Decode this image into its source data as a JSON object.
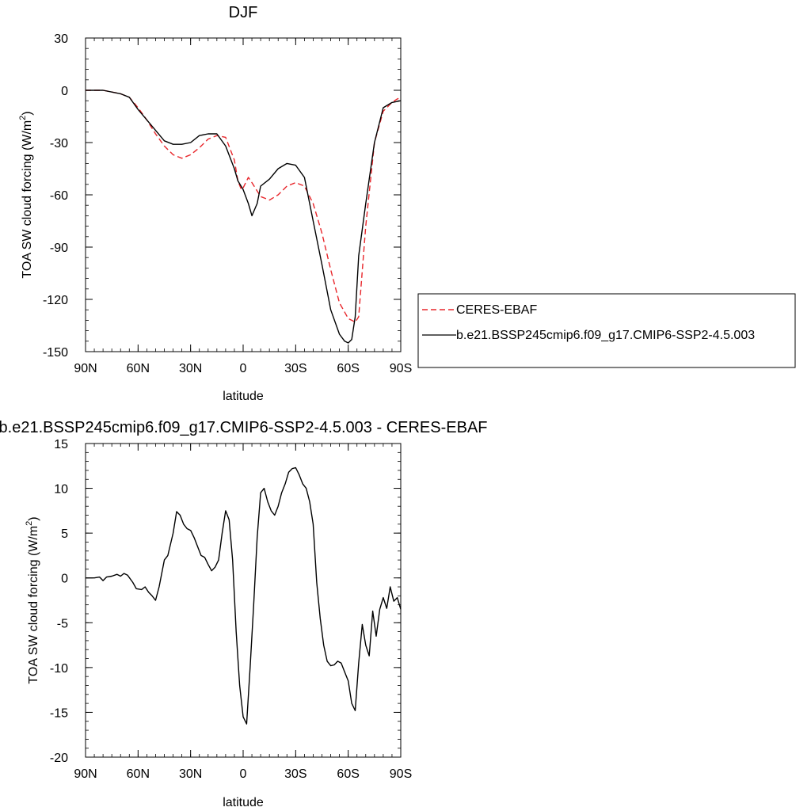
{
  "chart_data": [
    {
      "type": "line",
      "title": "DJF",
      "xlabel": "latitude",
      "ylabel": "TOA SW cloud forcing (W/m",
      "ylabel_sup": "2",
      "ylabel_close": ")",
      "xlim": [
        90,
        -90
      ],
      "ylim": [
        -150,
        30
      ],
      "xticks": [
        {
          "value": 90,
          "label": "90N"
        },
        {
          "value": 60,
          "label": "60N"
        },
        {
          "value": 30,
          "label": "30N"
        },
        {
          "value": 0,
          "label": "0"
        },
        {
          "value": -30,
          "label": "30S"
        },
        {
          "value": -60,
          "label": "60S"
        },
        {
          "value": -90,
          "label": "90S"
        }
      ],
      "yticks": [
        30,
        0,
        -30,
        -60,
        -90,
        -120,
        -150
      ],
      "legend": "right",
      "series": [
        {
          "name": "CERES-EBAF",
          "color": "#e8262b",
          "dash": "dashed",
          "x": [
            90,
            85,
            80,
            75,
            70,
            65,
            60,
            55,
            50,
            45,
            40,
            35,
            30,
            25,
            20,
            15,
            10,
            5,
            3,
            1,
            0,
            -3,
            -5,
            -10,
            -15,
            -20,
            -25,
            -30,
            -35,
            -40,
            -45,
            -50,
            -55,
            -60,
            -62,
            -64,
            -66,
            -70,
            -75,
            -80,
            -85,
            -88,
            -90
          ],
          "y": [
            0,
            0,
            0,
            -1,
            -2,
            -4,
            -10,
            -17,
            -25,
            -32,
            -37,
            -39,
            -37,
            -33,
            -28,
            -26,
            -27,
            -40,
            -52,
            -57,
            -56,
            -50,
            -53,
            -61,
            -63,
            -60,
            -55,
            -53,
            -55,
            -65,
            -82,
            -103,
            -122,
            -131,
            -132,
            -133,
            -130,
            -78,
            -30,
            -12,
            -7,
            -5,
            -4
          ]
        },
        {
          "name": "b.e21.BSSP245cmip6.f09_g17.CMIP6-SSP2-4.5.003",
          "color": "#000000",
          "dash": "solid",
          "x": [
            90,
            85,
            80,
            75,
            70,
            65,
            60,
            55,
            50,
            45,
            40,
            35,
            30,
            25,
            20,
            15,
            10,
            5,
            3,
            0,
            -3,
            -5,
            -8,
            -10,
            -15,
            -20,
            -25,
            -30,
            -35,
            -40,
            -45,
            -50,
            -55,
            -58,
            -60,
            -62,
            -64,
            -66,
            -70,
            -75,
            -80,
            -85,
            -90
          ],
          "y": [
            0,
            0,
            0,
            -1,
            -2,
            -4,
            -11,
            -17,
            -23,
            -29,
            -31,
            -31,
            -30,
            -26,
            -25,
            -25,
            -32,
            -45,
            -52,
            -57,
            -65,
            -72,
            -65,
            -55,
            -51,
            -45,
            -42,
            -43,
            -50,
            -75,
            -100,
            -126,
            -140,
            -144,
            -145,
            -143,
            -130,
            -95,
            -65,
            -30,
            -10,
            -7,
            -6
          ]
        }
      ]
    },
    {
      "type": "line",
      "title": "b.e21.BSSP245cmip6.f09_g17.CMIP6-SSP2-4.5.003 - CERES-EBAF",
      "xlabel": "latitude",
      "ylabel": "TOA SW cloud forcing (W/m",
      "ylabel_sup": "2",
      "ylabel_close": ")",
      "xlim": [
        90,
        -90
      ],
      "ylim": [
        -20,
        15
      ],
      "xticks": [
        {
          "value": 90,
          "label": "90N"
        },
        {
          "value": 60,
          "label": "60N"
        },
        {
          "value": 30,
          "label": "30N"
        },
        {
          "value": 0,
          "label": "0"
        },
        {
          "value": -30,
          "label": "30S"
        },
        {
          "value": -60,
          "label": "60S"
        },
        {
          "value": -90,
          "label": "90S"
        }
      ],
      "yticks": [
        15,
        10,
        5,
        0,
        -5,
        -10,
        -15,
        -20
      ],
      "series": [
        {
          "color": "#000000",
          "dash": "solid",
          "x": [
            90,
            85,
            82,
            80,
            78,
            75,
            72,
            70,
            68,
            66,
            63,
            61,
            58,
            56,
            54,
            52,
            50,
            48,
            45,
            43,
            40,
            38,
            36,
            34,
            32,
            30,
            28,
            26,
            24,
            22,
            20,
            18,
            16,
            14,
            12,
            10,
            8,
            6,
            4,
            2,
            0,
            -2,
            -4,
            -6,
            -8,
            -10,
            -12,
            -14,
            -16,
            -18,
            -20,
            -22,
            -24,
            -26,
            -28,
            -30,
            -32,
            -34,
            -36,
            -38,
            -40,
            -42,
            -44,
            -46,
            -48,
            -50,
            -52,
            -54,
            -56,
            -58,
            -60,
            -62,
            -64,
            -66,
            -68,
            -70,
            -72,
            -74,
            -76,
            -78,
            -80,
            -82,
            -84,
            -86,
            -88,
            -90
          ],
          "y": [
            0,
            0,
            0.1,
            -0.3,
            0.1,
            0.2,
            0.4,
            0.2,
            0.5,
            0.3,
            -0.5,
            -1.2,
            -1.3,
            -1.0,
            -1.6,
            -2.0,
            -2.5,
            -1.0,
            2.0,
            2.5,
            5.0,
            7.4,
            7.0,
            6.0,
            5.5,
            5.3,
            4.5,
            3.5,
            2.5,
            2.3,
            1.5,
            0.8,
            1.2,
            2.0,
            5.0,
            7.5,
            6.5,
            2.0,
            -6.0,
            -12.0,
            -15.5,
            -16.3,
            -10.0,
            -3.0,
            4.5,
            9.5,
            10.0,
            8.5,
            7.5,
            7.0,
            8.0,
            9.5,
            10.5,
            11.8,
            12.2,
            12.3,
            11.5,
            10.5,
            10.0,
            8.5,
            6.0,
            -0.5,
            -4.5,
            -7.5,
            -9.3,
            -9.8,
            -9.7,
            -9.3,
            -9.5,
            -10.5,
            -11.5,
            -14.0,
            -14.8,
            -9.5,
            -5.2,
            -7.5,
            -8.7,
            -3.7,
            -6.5,
            -3.5,
            -2.2,
            -3.4,
            -1.0,
            -2.6,
            -2.2,
            -3.5
          ]
        }
      ]
    }
  ]
}
